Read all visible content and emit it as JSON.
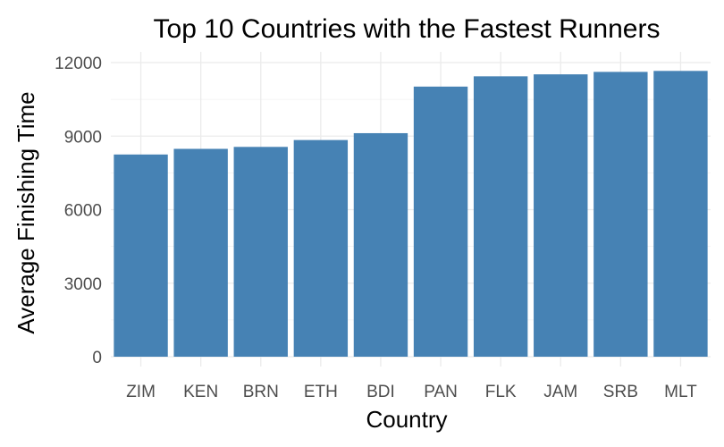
{
  "chart_data": {
    "type": "bar",
    "title": "Top 10 Countries with the Fastest Runners",
    "xlabel": "Country",
    "ylabel": "Average Finishing Time",
    "categories": [
      "ZIM",
      "KEN",
      "BRN",
      "ETH",
      "BDI",
      "PAN",
      "FLK",
      "JAM",
      "SRB",
      "MLT"
    ],
    "values": [
      8250,
      8480,
      8560,
      8840,
      9120,
      11020,
      11440,
      11520,
      11620,
      11660
    ],
    "ylim": [
      0,
      12500
    ],
    "yticks": [
      0,
      3000,
      6000,
      9000,
      12000
    ],
    "ytick_labels": [
      "0",
      "3000",
      "6000",
      "9000",
      "12000"
    ],
    "bar_color": "#4682B4",
    "grid": true,
    "legend": "none"
  }
}
